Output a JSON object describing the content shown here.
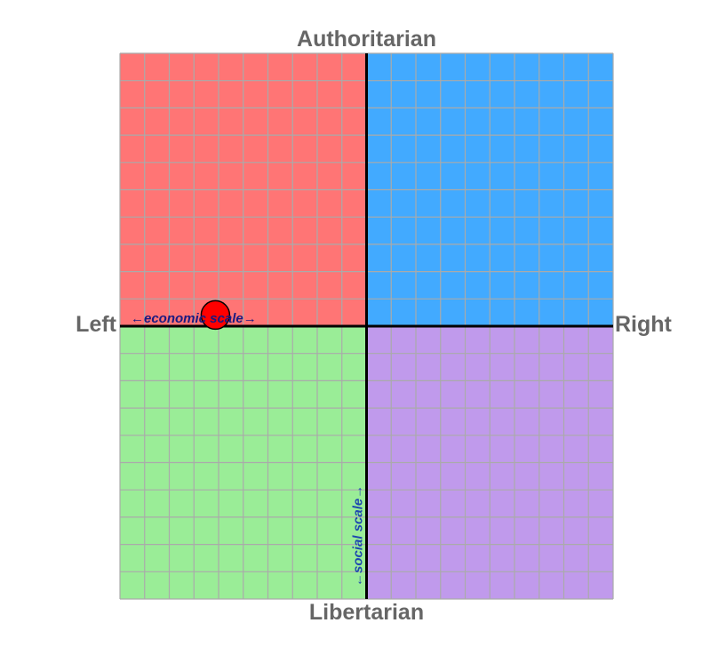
{
  "chart_data": {
    "type": "scatter",
    "title": "",
    "labels": {
      "top": "Authoritarian",
      "bottom": "Libertarian",
      "left": "Left",
      "right": "Right",
      "x_axis_note": "←economic scale→",
      "y_axis_note": "←social scale→"
    },
    "xlim": [
      -10,
      10
    ],
    "ylim": [
      -10,
      10
    ],
    "grid": true,
    "grid_step": 1,
    "quadrants": [
      {
        "name": "authoritarian-left",
        "color": "#ff7575"
      },
      {
        "name": "authoritarian-right",
        "color": "#42aaff"
      },
      {
        "name": "libertarian-left",
        "color": "#9aed97"
      },
      {
        "name": "libertarian-right",
        "color": "#c09aec"
      }
    ],
    "points": [
      {
        "x": -6.13,
        "y": 0.41,
        "color": "#ff0000"
      }
    ]
  }
}
